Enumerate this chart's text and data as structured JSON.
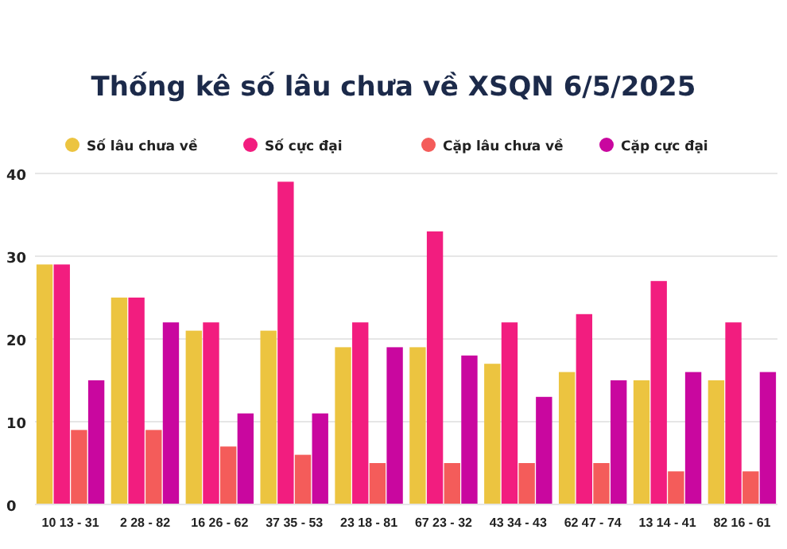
{
  "chart_data": {
    "type": "bar",
    "title": "Thống kê số lâu chưa về XSQN 6/5/2025",
    "categories": [
      "10 13 - 31",
      "2 28 - 82",
      "16 26 - 62",
      "37 35 - 53",
      "23 18 - 81",
      "67 23 - 32",
      "43 34 - 43",
      "62 47 - 74",
      "13 14 - 41",
      "82 16 - 61"
    ],
    "series": [
      {
        "name": "Số lâu chưa về",
        "color": "#ecc440",
        "values": [
          29,
          25,
          21,
          21,
          19,
          19,
          17,
          16,
          15,
          15
        ]
      },
      {
        "name": "Số cực đại",
        "color": "#f21d7f",
        "values": [
          29,
          25,
          22,
          39,
          22,
          33,
          22,
          23,
          27,
          22
        ]
      },
      {
        "name": "Cặp lâu chưa về",
        "color": "#f45c5a",
        "values": [
          9,
          9,
          7,
          6,
          5,
          5,
          5,
          5,
          4,
          4
        ]
      },
      {
        "name": "Cặp cực đại",
        "color": "#c9079f",
        "values": [
          15,
          22,
          11,
          11,
          19,
          18,
          13,
          15,
          16,
          16
        ]
      }
    ],
    "ylim": [
      0,
      40
    ],
    "yticks": [
      0,
      10,
      20,
      30,
      40
    ],
    "grid": "y",
    "legend": "top"
  }
}
